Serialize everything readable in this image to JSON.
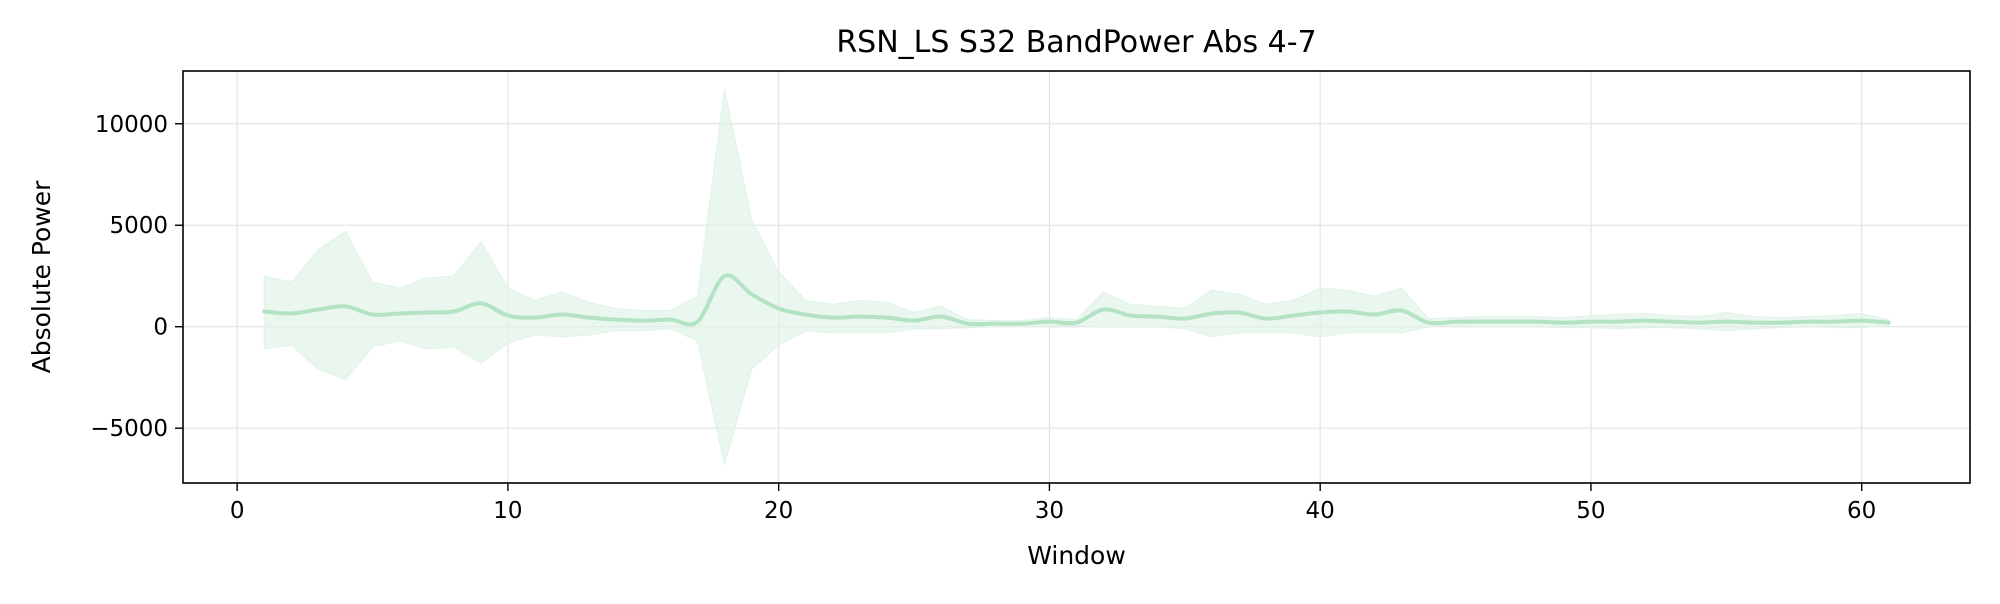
{
  "chart_data": {
    "type": "line",
    "title": "RSN_LS S32 BandPower Abs 4-7",
    "xlabel": "Window",
    "ylabel": "Absolute Power",
    "xlim": [
      -2,
      64
    ],
    "ylim": [
      -7700,
      12600
    ],
    "x_ticks": [
      0,
      10,
      20,
      30,
      40,
      50,
      60
    ],
    "y_ticks": [
      -5000,
      0,
      5000,
      10000
    ],
    "x_tick_labels": [
      "0",
      "10",
      "20",
      "30",
      "40",
      "50",
      "60"
    ],
    "y_tick_labels": [
      "−5000",
      "0",
      "5000",
      "10000"
    ],
    "grid": true,
    "legend": "none",
    "colors": {
      "line": "#b3e3c4",
      "band": "#dff3e6",
      "grid": "#e4e4e4",
      "axes": "#000000"
    },
    "series": [
      {
        "x": [
          1,
          2,
          3,
          4,
          5,
          6,
          7,
          8,
          9,
          10,
          11,
          12,
          13,
          14,
          15,
          16,
          17,
          18,
          19,
          20,
          21,
          22,
          23,
          24,
          25,
          26,
          27,
          28,
          29,
          30,
          31,
          32,
          33,
          34,
          35,
          36,
          37,
          38,
          39,
          40,
          41,
          42,
          43,
          44,
          45,
          46,
          47,
          48,
          49,
          50,
          51,
          52,
          53,
          54,
          55,
          56,
          57,
          58,
          59,
          60,
          61
        ],
        "mean": [
          750,
          650,
          850,
          1000,
          600,
          650,
          700,
          750,
          1150,
          550,
          450,
          600,
          450,
          350,
          300,
          350,
          250,
          2500,
          1600,
          900,
          600,
          450,
          500,
          450,
          300,
          500,
          150,
          150,
          150,
          250,
          200,
          850,
          550,
          500,
          400,
          650,
          700,
          400,
          550,
          700,
          750,
          600,
          800,
          200,
          250,
          250,
          250,
          250,
          200,
          250,
          250,
          300,
          250,
          200,
          250,
          200,
          200,
          250,
          250,
          300,
          200
        ],
        "upper": [
          2500,
          2200,
          3800,
          4700,
          2200,
          1900,
          2400,
          2500,
          4200,
          1900,
          1300,
          1700,
          1200,
          900,
          800,
          800,
          1500,
          11700,
          5300,
          2700,
          1300,
          1100,
          1300,
          1200,
          700,
          1000,
          350,
          300,
          300,
          450,
          350,
          1700,
          1100,
          1000,
          900,
          1800,
          1600,
          1100,
          1300,
          1900,
          1800,
          1500,
          1900,
          400,
          450,
          500,
          500,
          500,
          450,
          550,
          600,
          650,
          550,
          500,
          700,
          500,
          450,
          500,
          550,
          650,
          350
        ],
        "lower": [
          -1100,
          -900,
          -2100,
          -2600,
          -1000,
          -700,
          -1100,
          -1000,
          -1800,
          -800,
          -400,
          -500,
          -400,
          -200,
          -200,
          -100,
          -700,
          -6800,
          -2100,
          -900,
          -200,
          -300,
          -300,
          -300,
          -100,
          -100,
          -50,
          0,
          0,
          50,
          50,
          0,
          0,
          0,
          -100,
          -500,
          -300,
          -300,
          -300,
          -500,
          -300,
          -300,
          -300,
          0,
          50,
          0,
          0,
          0,
          -50,
          -50,
          -100,
          -50,
          -50,
          -100,
          -200,
          -100,
          -50,
          0,
          -50,
          -50,
          50
        ]
      }
    ]
  }
}
